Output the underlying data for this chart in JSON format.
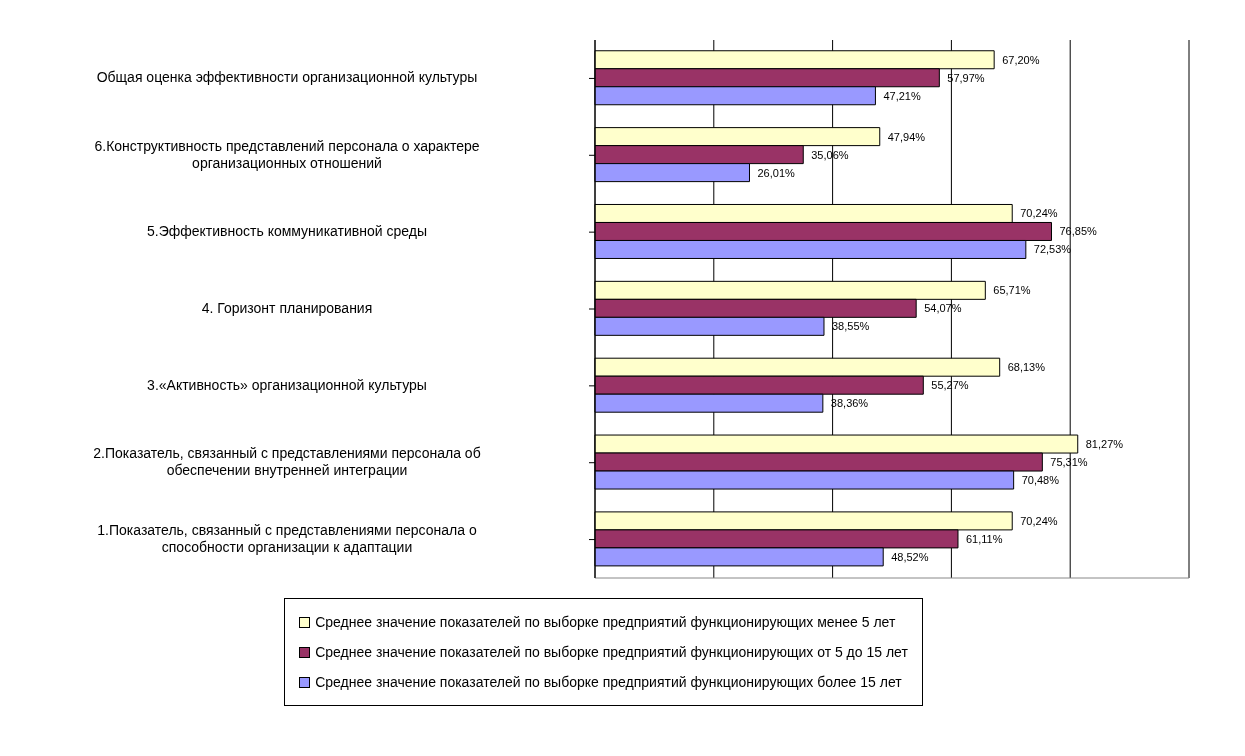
{
  "chart_data": {
    "type": "bar",
    "orientation": "horizontal",
    "categories": [
      "Общая оценка эффективности организационной культуры",
      "6.Конструктивность  представлений персонала о  характере организационных отношений",
      "5.Эффективность коммуникативной среды",
      "4. Горизонт планирования",
      "3.«Активность» организационной культуры",
      "2.Показатель,  связанный с представлениями персонала  об обеспечении внутренней интеграции",
      "1.Показатель,  связанный с представлениями персонала  о способности организации к адаптации"
    ],
    "series": [
      {
        "name": "Среднее значение показателей по выборке предприятий функционирующих менее 5 лет",
        "color": "#ffffcc",
        "values": [
          67.2,
          47.94,
          70.24,
          65.71,
          68.13,
          81.27,
          70.24
        ],
        "value_labels": [
          "67,20%",
          "47,94%",
          "70,24%",
          "65,71%",
          "68,13%",
          "81,27%",
          "70,24%"
        ]
      },
      {
        "name": "Среднее значение показателей по выборке предприятий функционирующих от 5 до  15 лет",
        "color": "#993366",
        "values": [
          57.97,
          35.06,
          76.85,
          54.07,
          55.27,
          75.31,
          61.11
        ],
        "value_labels": [
          "57,97%",
          "35,06%",
          "76,85%",
          "54,07%",
          "55,27%",
          "75,31%",
          "61,11%"
        ]
      },
      {
        "name": "Среднее значение показателей по выборке предприятий функционирующих более 15 лет",
        "color": "#9999ff",
        "values": [
          47.21,
          26.01,
          72.53,
          38.55,
          38.36,
          70.48,
          48.52
        ],
        "value_labels": [
          "47,21%",
          "26,01%",
          "72,53%",
          "38,55%",
          "38,36%",
          "70,48%",
          "48,52%"
        ]
      }
    ],
    "tick_labels": "y",
    "grid": "x",
    "legend": "bottom"
  }
}
